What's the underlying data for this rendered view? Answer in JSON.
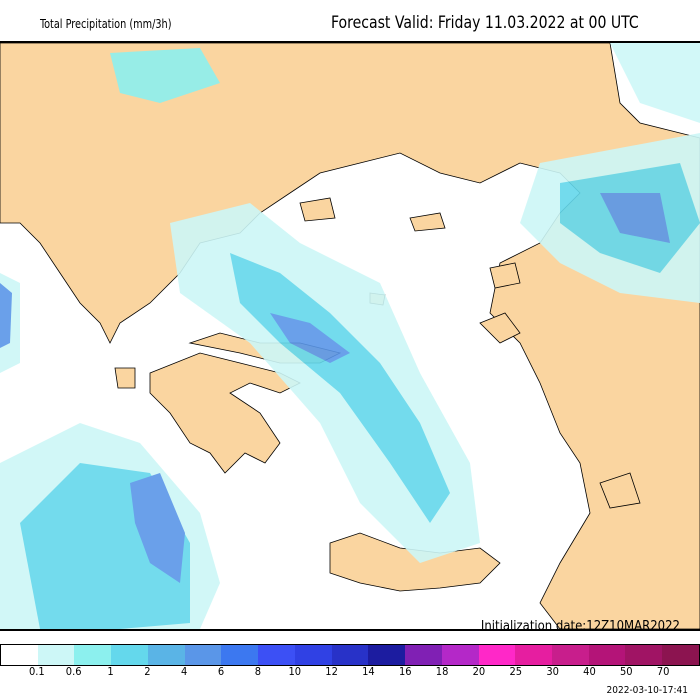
{
  "header": {
    "title": "Total Precipitation (mm/3h)",
    "forecast_valid": "Forecast Valid:  Friday 11.03.2022 at 00 UTC"
  },
  "footer": {
    "initialization": "Initialization date:12Z10MAR2022",
    "timestamp": "2022-03-10-17:41"
  },
  "legend": {
    "colors": [
      "#ffffff",
      "#cdf7f7",
      "#8cf0ee",
      "#64d8ec",
      "#5ab4e6",
      "#5a96e8",
      "#3c78f0",
      "#3c50f5",
      "#3041e4",
      "#2832c8",
      "#1c1ca0",
      "#8020b4",
      "#b428c8",
      "#ff28c8",
      "#e61ea0",
      "#c81e8c",
      "#b41478",
      "#a01464",
      "#8c1450"
    ],
    "labels": [
      "0.1",
      "0.6",
      "1",
      "2",
      "4",
      "6",
      "8",
      "10",
      "12",
      "14",
      "16",
      "18",
      "20",
      "25",
      "30",
      "40",
      "50",
      "70"
    ]
  },
  "colors": {
    "land": "#fad5a0",
    "sea": "#ffffff"
  }
}
